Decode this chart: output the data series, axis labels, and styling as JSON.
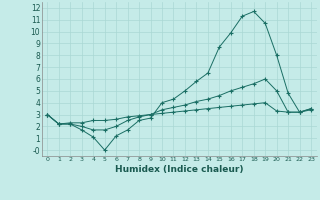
{
  "xlabel": "Humidex (Indice chaleur)",
  "ylabel": "",
  "xlim": [
    -0.5,
    23.5
  ],
  "ylim": [
    -0.5,
    12.5
  ],
  "xticks": [
    0,
    1,
    2,
    3,
    4,
    5,
    6,
    7,
    8,
    9,
    10,
    11,
    12,
    13,
    14,
    15,
    16,
    17,
    18,
    19,
    20,
    21,
    22,
    23
  ],
  "yticks": [
    0,
    1,
    2,
    3,
    4,
    5,
    6,
    7,
    8,
    9,
    10,
    11,
    12
  ],
  "ytick_labels": [
    "-0",
    "1",
    "2",
    "3",
    "4",
    "5",
    "6",
    "7",
    "8",
    "9",
    "10",
    "11",
    "12"
  ],
  "bg_color": "#c5ebe8",
  "grid_color": "#aad8d4",
  "line_color": "#1a6e64",
  "line1": [
    3.0,
    2.2,
    2.2,
    1.7,
    1.1,
    0.0,
    1.2,
    1.7,
    2.5,
    2.7,
    4.0,
    4.3,
    5.0,
    5.8,
    6.5,
    8.7,
    9.9,
    11.3,
    11.7,
    10.7,
    8.0,
    4.8,
    3.2,
    3.5
  ],
  "line2": [
    3.0,
    2.2,
    2.2,
    2.0,
    1.7,
    1.7,
    2.0,
    2.5,
    2.8,
    3.0,
    3.4,
    3.6,
    3.8,
    4.1,
    4.3,
    4.6,
    5.0,
    5.3,
    5.6,
    6.0,
    5.0,
    3.2,
    3.2,
    3.5
  ],
  "line3": [
    3.0,
    2.2,
    2.3,
    2.3,
    2.5,
    2.5,
    2.6,
    2.8,
    2.9,
    3.0,
    3.1,
    3.2,
    3.3,
    3.4,
    3.5,
    3.6,
    3.7,
    3.8,
    3.9,
    4.0,
    3.3,
    3.2,
    3.2,
    3.4
  ]
}
